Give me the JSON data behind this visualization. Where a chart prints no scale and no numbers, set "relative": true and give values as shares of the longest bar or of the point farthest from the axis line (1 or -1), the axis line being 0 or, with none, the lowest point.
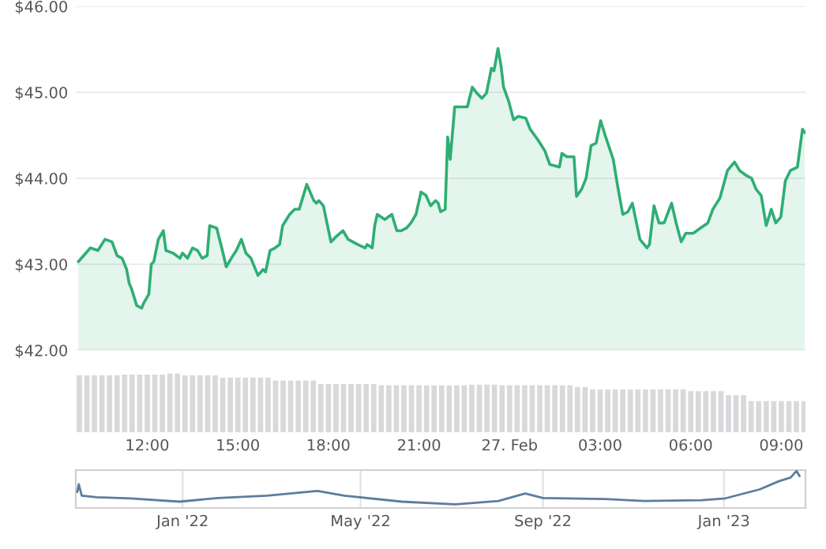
{
  "chart_data": [
    {
      "type": "area",
      "color": "#2fae74",
      "grid": "y",
      "tick_labels": "y",
      "xlim": [
        "2023-02-26T09:38",
        "2023-02-27T09:48"
      ],
      "ylim": [
        42,
        46
      ],
      "yticks": [
        {
          "value": 42,
          "label": "$42.00"
        },
        {
          "value": 43,
          "label": "$43.00"
        },
        {
          "value": 44,
          "label": "$44.00"
        },
        {
          "value": 45,
          "label": "$45.00"
        },
        {
          "value": 46,
          "label": "$46.00"
        }
      ],
      "x": [
        "2023-02-26T09:43",
        "2023-02-26T10:07",
        "2023-02-26T10:22",
        "2023-02-26T10:36",
        "2023-02-26T10:50",
        "2023-02-26T11:00",
        "2023-02-26T11:10",
        "2023-02-26T11:19",
        "2023-02-26T11:24",
        "2023-02-26T11:29",
        "2023-02-26T11:39",
        "2023-02-26T11:49",
        "2023-02-26T11:53",
        "2023-02-26T12:03",
        "2023-02-26T12:08",
        "2023-02-26T12:13",
        "2023-02-26T12:22",
        "2023-02-26T12:32",
        "2023-02-26T12:37",
        "2023-02-26T12:51",
        "2023-02-26T13:05",
        "2023-02-26T13:10",
        "2023-02-26T13:20",
        "2023-02-26T13:30",
        "2023-02-26T13:40",
        "2023-02-26T13:49",
        "2023-02-26T13:59",
        "2023-02-26T14:04",
        "2023-02-26T14:18",
        "2023-02-26T14:28",
        "2023-02-26T14:37",
        "2023-02-26T14:47",
        "2023-02-26T14:57",
        "2023-02-26T15:07",
        "2023-02-26T15:16",
        "2023-02-26T15:26",
        "2023-02-26T15:40",
        "2023-02-26T15:50",
        "2023-02-26T15:55",
        "2023-02-26T16:04",
        "2023-02-26T16:14",
        "2023-02-26T16:23",
        "2023-02-26T16:29",
        "2023-02-26T16:43",
        "2023-02-26T16:53",
        "2023-02-26T17:02",
        "2023-02-26T17:17",
        "2023-02-26T17:31",
        "2023-02-26T17:36",
        "2023-02-26T17:41",
        "2023-02-26T17:50",
        "2023-02-26T18:05",
        "2023-02-26T18:15",
        "2023-02-26T18:29",
        "2023-02-26T18:39",
        "2023-02-26T18:58",
        "2023-02-26T19:13",
        "2023-02-26T19:17",
        "2023-02-26T19:27",
        "2023-02-26T19:32",
        "2023-02-26T19:37",
        "2023-02-26T19:52",
        "2023-02-26T20:06",
        "2023-02-26T20:16",
        "2023-02-26T20:25",
        "2023-02-26T20:35",
        "2023-02-26T20:44",
        "2023-02-26T20:54",
        "2023-02-26T21:04",
        "2023-02-26T21:14",
        "2023-02-26T21:23",
        "2023-02-26T21:33",
        "2023-02-26T21:38",
        "2023-02-26T21:43",
        "2023-02-26T21:52",
        "2023-02-26T21:57",
        "2023-02-26T22:02",
        "2023-02-26T22:11",
        "2023-02-26T22:26",
        "2023-02-26T22:36",
        "2023-02-26T22:46",
        "2023-02-26T22:55",
        "2023-02-26T23:05",
        "2023-02-26T23:14",
        "2023-02-26T23:24",
        "2023-02-26T23:29",
        "2023-02-26T23:37",
        "2023-02-26T23:43",
        "2023-02-26T23:48",
        "2023-02-26T23:58",
        "2023-02-27T00:08",
        "2023-02-27T00:17",
        "2023-02-27T00:32",
        "2023-02-27T00:41",
        "2023-02-27T00:56",
        "2023-02-27T01:10",
        "2023-02-27T01:20",
        "2023-02-27T01:39",
        "2023-02-27T01:44",
        "2023-02-27T01:54",
        "2023-02-27T02:08",
        "2023-02-27T02:13",
        "2023-02-27T02:23",
        "2023-02-27T02:32",
        "2023-02-27T02:42",
        "2023-02-27T02:52",
        "2023-02-27T03:01",
        "2023-02-27T03:11",
        "2023-02-27T03:26",
        "2023-02-27T03:35",
        "2023-02-27T03:45",
        "2023-02-27T03:55",
        "2023-02-27T04:04",
        "2023-02-27T04:19",
        "2023-02-27T04:33",
        "2023-02-27T04:38",
        "2023-02-27T04:47",
        "2023-02-27T04:57",
        "2023-02-27T05:07",
        "2023-02-27T05:22",
        "2023-02-27T05:31",
        "2023-02-27T05:41",
        "2023-02-27T05:50",
        "2023-02-27T06:05",
        "2023-02-27T06:19",
        "2023-02-27T06:34",
        "2023-02-27T06:44",
        "2023-02-27T06:58",
        "2023-02-27T07:13",
        "2023-02-27T07:27",
        "2023-02-27T07:37",
        "2023-02-27T07:51",
        "2023-02-27T08:01",
        "2023-02-27T08:10",
        "2023-02-27T08:20",
        "2023-02-27T08:30",
        "2023-02-27T08:40",
        "2023-02-27T08:49",
        "2023-02-27T08:59",
        "2023-02-27T09:08",
        "2023-02-27T09:18",
        "2023-02-27T09:32",
        "2023-02-27T09:42",
        "2023-02-27T09:47"
      ],
      "values": [
        43.03,
        43.19,
        43.16,
        43.29,
        43.26,
        43.1,
        43.07,
        42.94,
        42.78,
        42.71,
        42.52,
        42.49,
        42.55,
        42.65,
        43.0,
        43.03,
        43.29,
        43.39,
        43.16,
        43.13,
        43.07,
        43.13,
        43.07,
        43.19,
        43.16,
        43.07,
        43.1,
        43.45,
        43.42,
        43.19,
        42.97,
        43.07,
        43.16,
        43.29,
        43.13,
        43.07,
        42.87,
        42.94,
        42.91,
        43.16,
        43.19,
        43.23,
        43.45,
        43.58,
        43.64,
        43.64,
        43.93,
        43.74,
        43.71,
        43.74,
        43.68,
        43.26,
        43.32,
        43.39,
        43.29,
        43.23,
        43.19,
        43.23,
        43.19,
        43.45,
        43.58,
        43.52,
        43.58,
        43.39,
        43.39,
        43.42,
        43.48,
        43.58,
        43.84,
        43.8,
        43.68,
        43.74,
        43.71,
        43.61,
        43.64,
        44.48,
        44.22,
        44.83,
        44.83,
        44.83,
        45.06,
        44.99,
        44.93,
        44.99,
        45.28,
        45.25,
        45.51,
        45.31,
        45.06,
        44.9,
        44.68,
        44.72,
        44.7,
        44.57,
        44.45,
        44.32,
        44.16,
        44.13,
        44.29,
        44.25,
        44.25,
        43.79,
        43.87,
        44.0,
        44.38,
        44.41,
        44.67,
        44.48,
        44.22,
        43.9,
        43.58,
        43.61,
        43.71,
        43.29,
        43.19,
        43.23,
        43.68,
        43.48,
        43.48,
        43.71,
        43.48,
        43.26,
        43.36,
        43.36,
        43.42,
        43.48,
        43.64,
        43.77,
        44.09,
        44.19,
        44.09,
        44.03,
        44.0,
        43.87,
        43.8,
        43.45,
        43.64,
        43.48,
        43.55,
        43.97,
        44.09,
        44.13,
        44.57,
        44.53
      ]
    },
    {
      "type": "bar",
      "relative": true,
      "color": "#d8d9db",
      "tick_labels": "x",
      "xlim": [
        "2023-02-26T09:38",
        "2023-02-27T09:48"
      ],
      "xticks": [
        {
          "value": "2023-02-26T12:00",
          "label": "12:00"
        },
        {
          "value": "2023-02-26T15:00",
          "label": "15:00"
        },
        {
          "value": "2023-02-26T18:00",
          "label": "18:00"
        },
        {
          "value": "2023-02-26T21:00",
          "label": "21:00"
        },
        {
          "value": "2023-02-27T00:00",
          "label": "27. Feb"
        },
        {
          "value": "2023-02-27T03:00",
          "label": "03:00"
        },
        {
          "value": "2023-02-27T06:00",
          "label": "06:00"
        },
        {
          "value": "2023-02-27T09:00",
          "label": "09:00"
        }
      ],
      "x": [
        "2023-02-26T09:45",
        "2023-02-26T10:00",
        "2023-02-26T10:15",
        "2023-02-26T10:30",
        "2023-02-26T10:45",
        "2023-02-26T11:00",
        "2023-02-26T11:15",
        "2023-02-26T11:30",
        "2023-02-26T11:45",
        "2023-02-26T12:00",
        "2023-02-26T12:15",
        "2023-02-26T12:30",
        "2023-02-26T12:45",
        "2023-02-26T13:00",
        "2023-02-26T13:15",
        "2023-02-26T13:30",
        "2023-02-26T13:45",
        "2023-02-26T14:00",
        "2023-02-26T14:15",
        "2023-02-26T14:30",
        "2023-02-26T14:45",
        "2023-02-26T15:00",
        "2023-02-26T15:15",
        "2023-02-26T15:30",
        "2023-02-26T15:45",
        "2023-02-26T16:00",
        "2023-02-26T16:15",
        "2023-02-26T16:30",
        "2023-02-26T16:45",
        "2023-02-26T17:00",
        "2023-02-26T17:15",
        "2023-02-26T17:30",
        "2023-02-26T17:45",
        "2023-02-26T18:00",
        "2023-02-26T18:15",
        "2023-02-26T18:30",
        "2023-02-26T18:45",
        "2023-02-26T19:00",
        "2023-02-26T19:15",
        "2023-02-26T19:30",
        "2023-02-26T19:45",
        "2023-02-26T20:00",
        "2023-02-26T20:15",
        "2023-02-26T20:30",
        "2023-02-26T20:45",
        "2023-02-26T21:00",
        "2023-02-26T21:15",
        "2023-02-26T21:30",
        "2023-02-26T21:45",
        "2023-02-26T22:00",
        "2023-02-26T22:15",
        "2023-02-26T22:30",
        "2023-02-26T22:45",
        "2023-02-26T23:00",
        "2023-02-26T23:15",
        "2023-02-26T23:30",
        "2023-02-26T23:45",
        "2023-02-27T00:00",
        "2023-02-27T00:15",
        "2023-02-27T00:30",
        "2023-02-27T00:45",
        "2023-02-27T01:00",
        "2023-02-27T01:15",
        "2023-02-27T01:30",
        "2023-02-27T01:45",
        "2023-02-27T02:00",
        "2023-02-27T02:15",
        "2023-02-27T02:30",
        "2023-02-27T02:45",
        "2023-02-27T03:00",
        "2023-02-27T03:15",
        "2023-02-27T03:30",
        "2023-02-27T03:45",
        "2023-02-27T04:00",
        "2023-02-27T04:15",
        "2023-02-27T04:30",
        "2023-02-27T04:45",
        "2023-02-27T05:00",
        "2023-02-27T05:15",
        "2023-02-27T05:30",
        "2023-02-27T05:45",
        "2023-02-27T06:00",
        "2023-02-27T06:15",
        "2023-02-27T06:30",
        "2023-02-27T06:45",
        "2023-02-27T07:00",
        "2023-02-27T07:15",
        "2023-02-27T07:30",
        "2023-02-27T07:45",
        "2023-02-27T08:00",
        "2023-02-27T08:15",
        "2023-02-27T08:30",
        "2023-02-27T08:45",
        "2023-02-27T09:00",
        "2023-02-27T09:15",
        "2023-02-27T09:30",
        "2023-02-27T09:45"
      ],
      "values": [
        0.97,
        0.97,
        0.97,
        0.97,
        0.97,
        0.97,
        0.98,
        0.98,
        0.98,
        0.98,
        0.98,
        0.98,
        1.0,
        1.0,
        0.97,
        0.97,
        0.97,
        0.97,
        0.97,
        0.93,
        0.93,
        0.93,
        0.93,
        0.93,
        0.93,
        0.93,
        0.88,
        0.88,
        0.88,
        0.88,
        0.88,
        0.88,
        0.82,
        0.82,
        0.82,
        0.82,
        0.82,
        0.82,
        0.82,
        0.82,
        0.8,
        0.8,
        0.8,
        0.8,
        0.8,
        0.8,
        0.8,
        0.8,
        0.8,
        0.8,
        0.8,
        0.8,
        0.81,
        0.81,
        0.81,
        0.81,
        0.8,
        0.8,
        0.8,
        0.8,
        0.8,
        0.8,
        0.8,
        0.8,
        0.8,
        0.8,
        0.77,
        0.77,
        0.73,
        0.73,
        0.73,
        0.73,
        0.73,
        0.73,
        0.73,
        0.73,
        0.73,
        0.73,
        0.73,
        0.73,
        0.73,
        0.7,
        0.7,
        0.7,
        0.7,
        0.7,
        0.63,
        0.63,
        0.63,
        0.53,
        0.53,
        0.53,
        0.53,
        0.53,
        0.53,
        0.53,
        0.53
      ]
    },
    {
      "type": "line",
      "relative": true,
      "color": "#5d7d9c",
      "grid": "x",
      "tick_labels": "x",
      "xlim": [
        "2021-10-21",
        "2023-02-25"
      ],
      "xticks": [
        {
          "value": "2022-01-01",
          "label": "Jan '22"
        },
        {
          "value": "2022-05-01",
          "label": "May '22"
        },
        {
          "value": "2022-09-01",
          "label": "Sep '22"
        },
        {
          "value": "2023-01-01",
          "label": "Jan '23"
        }
      ],
      "x": [
        "2021-10-22",
        "2021-10-23",
        "2021-10-25",
        "2021-11-04",
        "2021-11-27",
        "2021-12-30",
        "2022-01-25",
        "2022-02-27",
        "2022-04-02",
        "2022-04-20",
        "2022-05-29",
        "2022-07-04",
        "2022-08-02",
        "2022-08-20",
        "2022-09-01",
        "2022-10-13",
        "2022-11-08",
        "2022-12-17",
        "2023-01-02",
        "2023-01-25",
        "2023-02-07",
        "2023-02-15",
        "2023-02-19",
        "2023-02-21"
      ],
      "values": [
        0.43,
        0.64,
        0.33,
        0.29,
        0.26,
        0.17,
        0.27,
        0.33,
        0.46,
        0.33,
        0.17,
        0.1,
        0.19,
        0.39,
        0.27,
        0.24,
        0.19,
        0.21,
        0.26,
        0.5,
        0.72,
        0.82,
        1.0,
        0.86
      ]
    }
  ]
}
